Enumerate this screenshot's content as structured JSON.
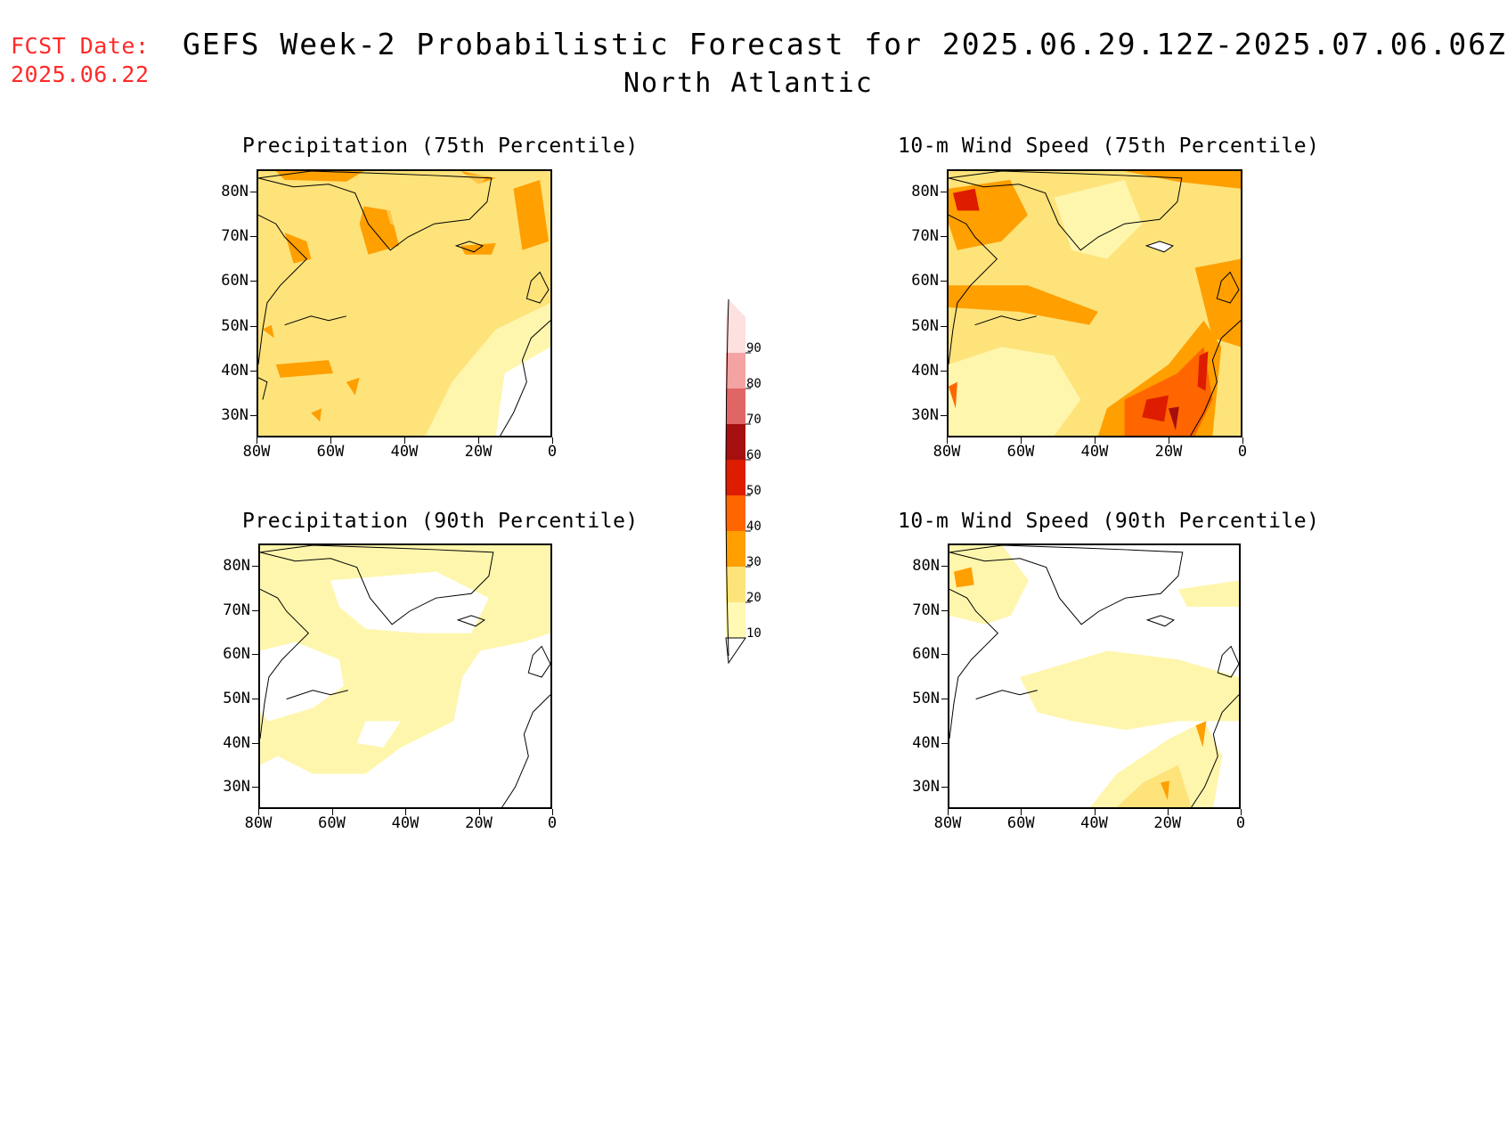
{
  "header": {
    "fcst_label": "FCST Date:",
    "fcst_date": "2025.06.22",
    "title": "GEFS Week-2 Probabilistic Forecast for 2025.06.29.12Z-2025.07.06.06Z",
    "subtitle": "North Atlantic"
  },
  "axes": {
    "lat_labels": [
      "80N",
      "70N",
      "60N",
      "50N",
      "40N",
      "30N"
    ],
    "lon_labels": [
      "80W",
      "60W",
      "40W",
      "20W",
      "0"
    ]
  },
  "panels": [
    {
      "title": "Precipitation (75th Percentile)"
    },
    {
      "title": "10-m Wind Speed (75th Percentile)"
    },
    {
      "title": "Precipitation (90th Percentile)"
    },
    {
      "title": "10-m Wind Speed (90th Percentile)"
    }
  ],
  "colorbar": {
    "labels": [
      "90",
      "80",
      "70",
      "60",
      "50",
      "40",
      "30",
      "20",
      "10"
    ],
    "colors": [
      "#fde0e0",
      "#f4a3a3",
      "#e06666",
      "#a50f0f",
      "#dd1c00",
      "#ff6600",
      "#ff9f00",
      "#fde37a",
      "#fff9b5"
    ]
  },
  "shading": {
    "p75_precip": "#fde37a",
    "p75_precip_high": "#ff9f00",
    "p75_wind": "#fde37a",
    "p75_wind_high": "#ff9f00",
    "p75_wind_higher": "#ff6600",
    "p75_wind_max": "#dd1c00",
    "p90_light": "#fff6ad",
    "p90_mid": "#fde37a",
    "p90_high": "#ff9f00"
  }
}
